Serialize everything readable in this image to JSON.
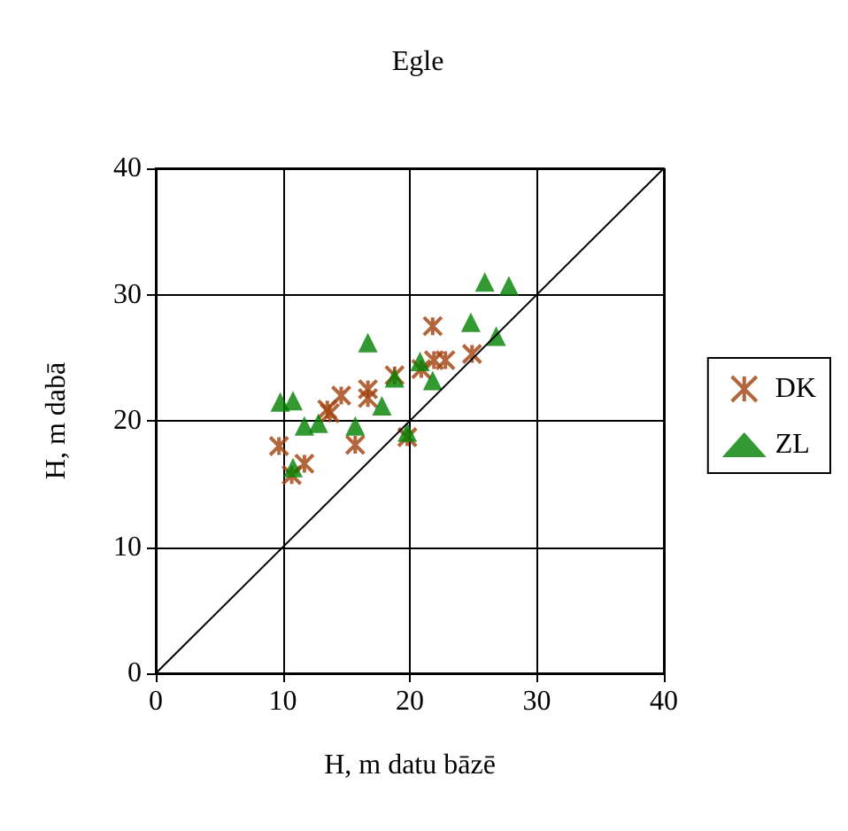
{
  "chart_data": {
    "type": "scatter",
    "title": "Egle",
    "xlabel": "H, m datu bāzē",
    "ylabel": "H, m dabā",
    "xlim": [
      0,
      40
    ],
    "ylim": [
      0,
      40
    ],
    "xticks": [
      0,
      10,
      20,
      30,
      40
    ],
    "yticks": [
      0,
      10,
      20,
      30,
      40
    ],
    "grid": true,
    "legend": "right",
    "series": [
      {
        "name": "DK",
        "color": "#a0400a",
        "marker": "cross",
        "x": [
          9.7,
          10.7,
          11.7,
          13.5,
          13.7,
          14.6,
          15.7,
          16.7,
          16.7,
          18.8,
          19.8,
          20.9,
          21.8,
          21.9,
          22.8,
          24.9
        ],
        "values": [
          18,
          15.7,
          16.6,
          20.9,
          20.6,
          22,
          18.1,
          22.5,
          21.8,
          23.6,
          18.7,
          24.1,
          27.5,
          24.8,
          24.8,
          25.3
        ]
      },
      {
        "name": "ZL",
        "color": "#008000",
        "marker": "triangle",
        "x": [
          9.8,
          10.8,
          10.8,
          11.7,
          12.8,
          15.7,
          16.7,
          17.8,
          18.8,
          19.8,
          20.8,
          21.8,
          24.8,
          25.9,
          26.8,
          27.8
        ],
        "values": [
          21.5,
          21.6,
          16.3,
          19.6,
          19.8,
          19.6,
          26.2,
          21.2,
          23.4,
          19.1,
          24.7,
          23.2,
          27.8,
          31,
          26.7,
          30.7
        ]
      },
      {
        "type": "line",
        "color": "#000000",
        "marker": "none",
        "x": [
          0,
          40
        ],
        "values": [
          0,
          40
        ]
      }
    ]
  }
}
